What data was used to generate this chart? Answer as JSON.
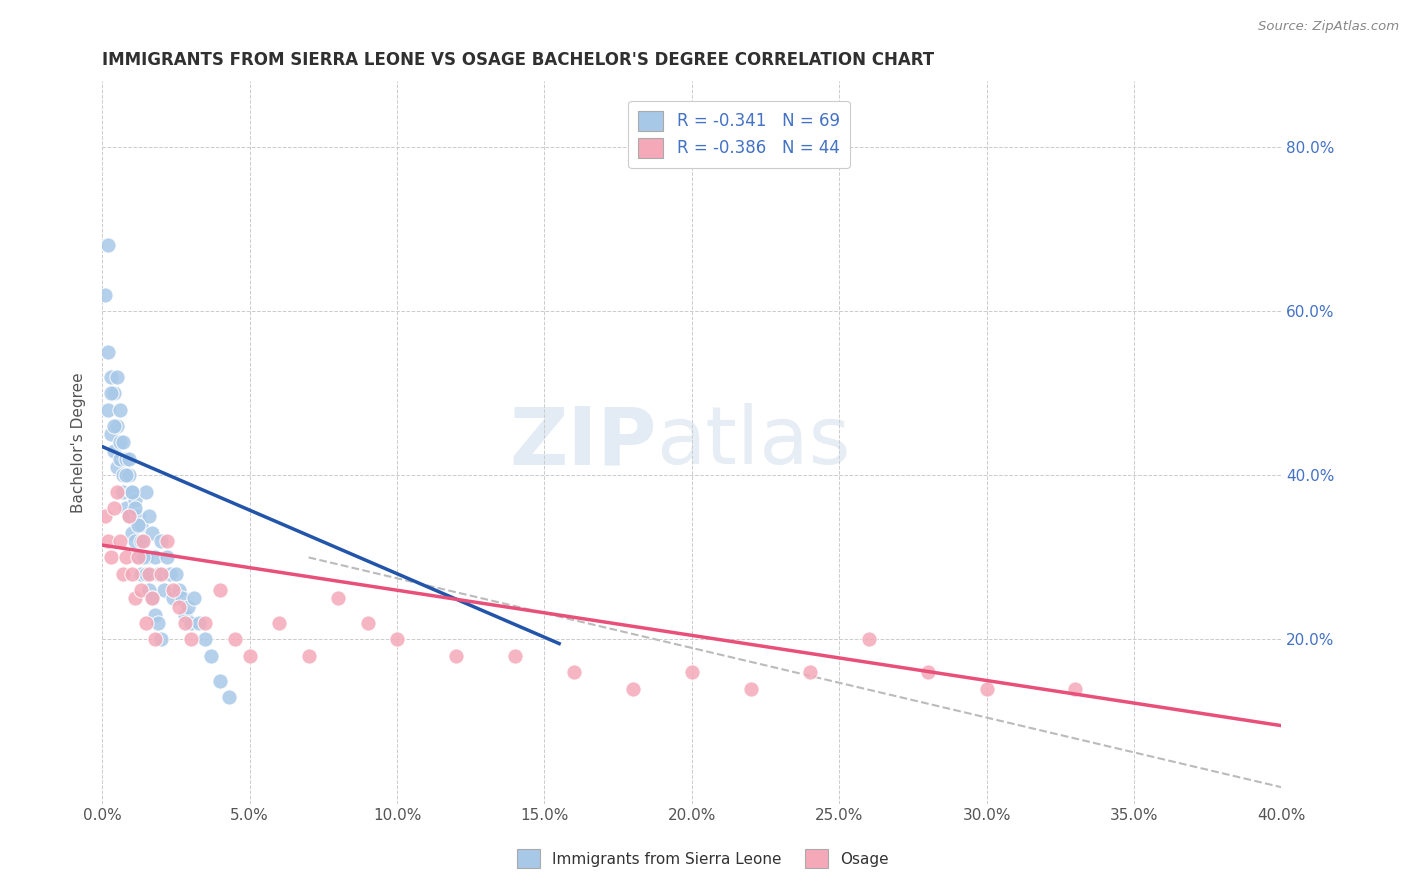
{
  "title": "IMMIGRANTS FROM SIERRA LEONE VS OSAGE BACHELOR'S DEGREE CORRELATION CHART",
  "source": "Source: ZipAtlas.com",
  "ylabel": "Bachelor's Degree",
  "right_yticks": [
    "20.0%",
    "40.0%",
    "60.0%",
    "80.0%"
  ],
  "right_ytick_vals": [
    0.2,
    0.4,
    0.6,
    0.8
  ],
  "xlim": [
    0.0,
    0.4
  ],
  "ylim": [
    0.0,
    0.88
  ],
  "legend_r1": "R = -0.341   N = 69",
  "legend_r2": "R = -0.386   N = 44",
  "blue_color": "#a8c8e8",
  "pink_color": "#f4a8b8",
  "blue_line_color": "#2255aa",
  "pink_line_color": "#e8507a",
  "dash_line_color": "#bbbbbb",
  "text_color": "#4472C4",
  "title_color": "#303030",
  "watermark_zip": "ZIP",
  "watermark_atlas": "atlas",
  "background_color": "#ffffff",
  "grid_color": "#cccccc",
  "sierra_leone_x": [
    0.001,
    0.002,
    0.002,
    0.003,
    0.003,
    0.004,
    0.004,
    0.005,
    0.005,
    0.006,
    0.006,
    0.007,
    0.007,
    0.008,
    0.008,
    0.009,
    0.009,
    0.01,
    0.01,
    0.011,
    0.011,
    0.012,
    0.012,
    0.013,
    0.013,
    0.014,
    0.015,
    0.015,
    0.016,
    0.016,
    0.017,
    0.018,
    0.019,
    0.02,
    0.021,
    0.022,
    0.023,
    0.024,
    0.025,
    0.026,
    0.027,
    0.028,
    0.029,
    0.03,
    0.031,
    0.033,
    0.035,
    0.037,
    0.04,
    0.043,
    0.002,
    0.003,
    0.004,
    0.005,
    0.006,
    0.007,
    0.008,
    0.009,
    0.01,
    0.011,
    0.012,
    0.013,
    0.014,
    0.015,
    0.016,
    0.017,
    0.018,
    0.019,
    0.02
  ],
  "sierra_leone_y": [
    0.62,
    0.48,
    0.55,
    0.45,
    0.52,
    0.43,
    0.5,
    0.46,
    0.41,
    0.44,
    0.42,
    0.4,
    0.38,
    0.42,
    0.36,
    0.4,
    0.35,
    0.38,
    0.33,
    0.37,
    0.32,
    0.35,
    0.3,
    0.34,
    0.28,
    0.32,
    0.38,
    0.3,
    0.35,
    0.28,
    0.33,
    0.3,
    0.28,
    0.32,
    0.26,
    0.3,
    0.28,
    0.25,
    0.28,
    0.26,
    0.25,
    0.23,
    0.24,
    0.22,
    0.25,
    0.22,
    0.2,
    0.18,
    0.15,
    0.13,
    0.68,
    0.5,
    0.46,
    0.52,
    0.48,
    0.44,
    0.4,
    0.42,
    0.38,
    0.36,
    0.34,
    0.32,
    0.3,
    0.28,
    0.26,
    0.25,
    0.23,
    0.22,
    0.2
  ],
  "osage_x": [
    0.001,
    0.002,
    0.003,
    0.004,
    0.005,
    0.006,
    0.007,
    0.008,
    0.009,
    0.01,
    0.011,
    0.012,
    0.013,
    0.014,
    0.015,
    0.016,
    0.017,
    0.018,
    0.02,
    0.022,
    0.024,
    0.026,
    0.028,
    0.03,
    0.035,
    0.04,
    0.045,
    0.05,
    0.06,
    0.07,
    0.08,
    0.09,
    0.1,
    0.12,
    0.14,
    0.16,
    0.18,
    0.2,
    0.22,
    0.24,
    0.26,
    0.28,
    0.3,
    0.33
  ],
  "osage_y": [
    0.35,
    0.32,
    0.3,
    0.36,
    0.38,
    0.32,
    0.28,
    0.3,
    0.35,
    0.28,
    0.25,
    0.3,
    0.26,
    0.32,
    0.22,
    0.28,
    0.25,
    0.2,
    0.28,
    0.32,
    0.26,
    0.24,
    0.22,
    0.2,
    0.22,
    0.26,
    0.2,
    0.18,
    0.22,
    0.18,
    0.25,
    0.22,
    0.2,
    0.18,
    0.18,
    0.16,
    0.14,
    0.16,
    0.14,
    0.16,
    0.2,
    0.16,
    0.14,
    0.14
  ],
  "sl_line_x0": 0.0,
  "sl_line_x1": 0.155,
  "sl_line_y0": 0.435,
  "sl_line_y1": 0.195,
  "osage_line_x0": 0.0,
  "osage_line_x1": 0.4,
  "osage_line_y0": 0.315,
  "osage_line_y1": 0.095,
  "dash_line_x0": 0.07,
  "dash_line_x1": 0.4,
  "dash_line_y0": 0.3,
  "dash_line_y1": 0.02
}
